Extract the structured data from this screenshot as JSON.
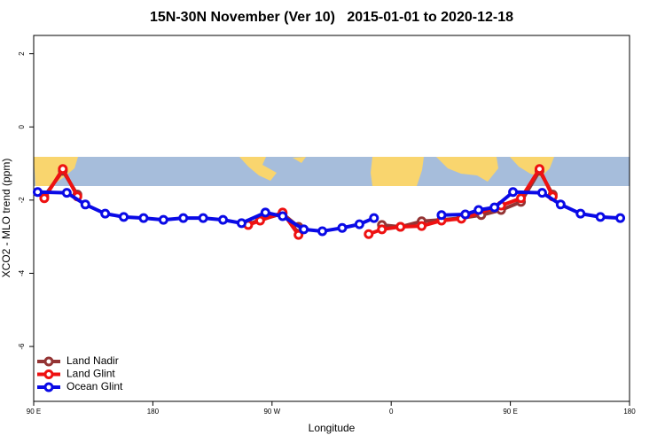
{
  "chart_data": {
    "type": "line",
    "title": "15N-30N November (Ver 10)   2015-01-01 to 2020-12-18",
    "xlabel": "Longitude",
    "ylabel": "XCO2 - MLO trend (ppm)",
    "xlim": [
      90,
      540
    ],
    "ylim": [
      -7.5,
      2.5
    ],
    "xticks": [
      {
        "value": 90,
        "label": "90 E"
      },
      180,
      {
        "value": 270,
        "label": "90 W"
      },
      {
        "value": 360,
        "label": "0"
      },
      {
        "value": 450,
        "label": "90 E"
      },
      {
        "value": 540,
        "label": "180"
      }
    ],
    "yticks": [
      -6,
      -4,
      -2,
      0,
      2
    ],
    "legend": "bottomleft",
    "series": [
      {
        "name": "Land Nadir",
        "color": "#943434",
        "x": [
          98,
          112,
          123,
          null,
          252,
          261,
          278,
          290,
          null,
          353,
          367,
          383,
          398,
          413,
          428,
          443,
          458,
          472,
          482
        ],
        "values": [
          -1.9,
          -1.2,
          -1.85,
          null,
          -2.66,
          -2.54,
          -2.37,
          -2.73,
          null,
          -2.68,
          -2.73,
          -2.58,
          -2.54,
          -2.49,
          -2.41,
          -2.27,
          -2.05,
          -1.2,
          -1.85
        ]
      },
      {
        "name": "Land Glint",
        "color": "#ee1111",
        "x": [
          98,
          112,
          123,
          null,
          252,
          261,
          278,
          290,
          null,
          343,
          353,
          367,
          383,
          398,
          413,
          443,
          458,
          472,
          482
        ],
        "values": [
          -1.95,
          -1.15,
          -1.9,
          null,
          -2.68,
          -2.56,
          -2.34,
          -2.95,
          null,
          -2.93,
          -2.8,
          -2.73,
          -2.71,
          -2.56,
          -2.51,
          -2.15,
          -1.95,
          -1.15,
          -1.9
        ]
      },
      {
        "name": "Ocean Glint",
        "color": "#0a0ae6",
        "x": [
          93,
          115,
          129,
          144,
          158,
          173,
          188,
          203,
          218,
          233,
          247,
          265,
          278,
          294,
          308,
          323,
          336,
          347,
          null,
          398,
          416,
          426,
          438,
          452,
          474,
          488,
          503,
          518,
          533
        ],
        "values": [
          -1.78,
          -1.8,
          -2.12,
          -2.37,
          -2.46,
          -2.49,
          -2.54,
          -2.49,
          -2.49,
          -2.54,
          -2.63,
          -2.34,
          -2.44,
          -2.8,
          -2.85,
          -2.76,
          -2.66,
          -2.49,
          null,
          -2.41,
          -2.39,
          -2.27,
          -2.2,
          -1.78,
          -1.8,
          -2.12,
          -2.37,
          -2.46,
          -2.49
        ]
      }
    ]
  }
}
